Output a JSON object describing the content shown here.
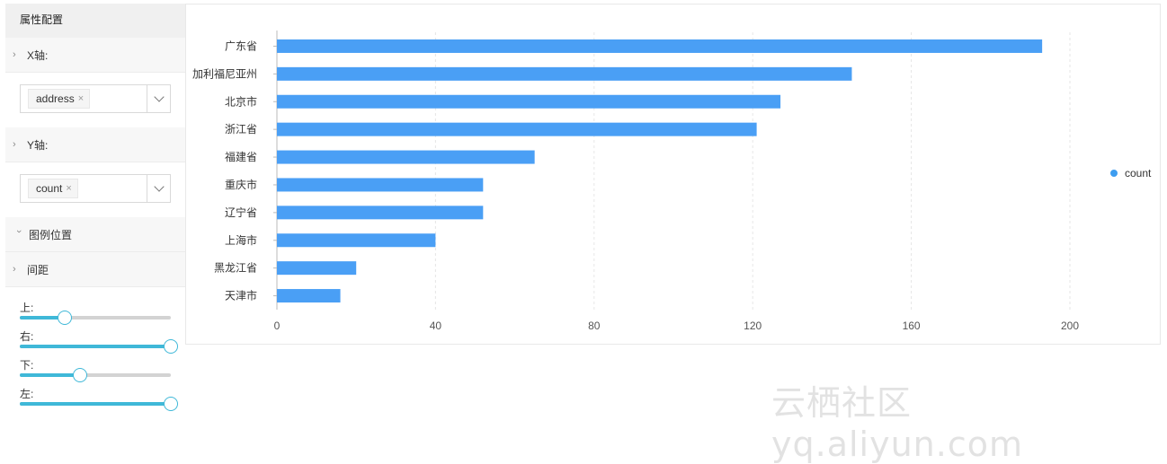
{
  "sidebar": {
    "title": "属性配置",
    "x_axis": {
      "label": "X轴:",
      "tag": "address",
      "remove": "×"
    },
    "y_axis": {
      "label": "Y轴:",
      "tag": "count",
      "remove": "×"
    },
    "legend_position": {
      "label": "图例位置"
    },
    "spacing": {
      "label": "间距",
      "sliders": [
        {
          "label": "上:",
          "value": 0.3
        },
        {
          "label": "右:",
          "value": 1.0
        },
        {
          "label": "下:",
          "value": 0.4
        },
        {
          "label": "左:",
          "value": 1.0
        }
      ]
    }
  },
  "colors": {
    "bar": "#4a9ff5",
    "accent": "#3fb8d8"
  },
  "chart_data": {
    "type": "bar",
    "orientation": "horizontal",
    "categories": [
      "广东省",
      "加利福尼亚州",
      "北京市",
      "浙江省",
      "福建省",
      "重庆市",
      "辽宁省",
      "上海市",
      "黑龙江省",
      "天津市"
    ],
    "series": [
      {
        "name": "count",
        "values": [
          193,
          145,
          127,
          121,
          65,
          52,
          52,
          40,
          20,
          16
        ]
      }
    ],
    "xlim": [
      0,
      220
    ],
    "xticks": [
      "0",
      "40",
      "80",
      "120",
      "160",
      "200"
    ],
    "grid": true,
    "legend": "right"
  },
  "watermark": "云栖社区 yq.aliyun.com"
}
